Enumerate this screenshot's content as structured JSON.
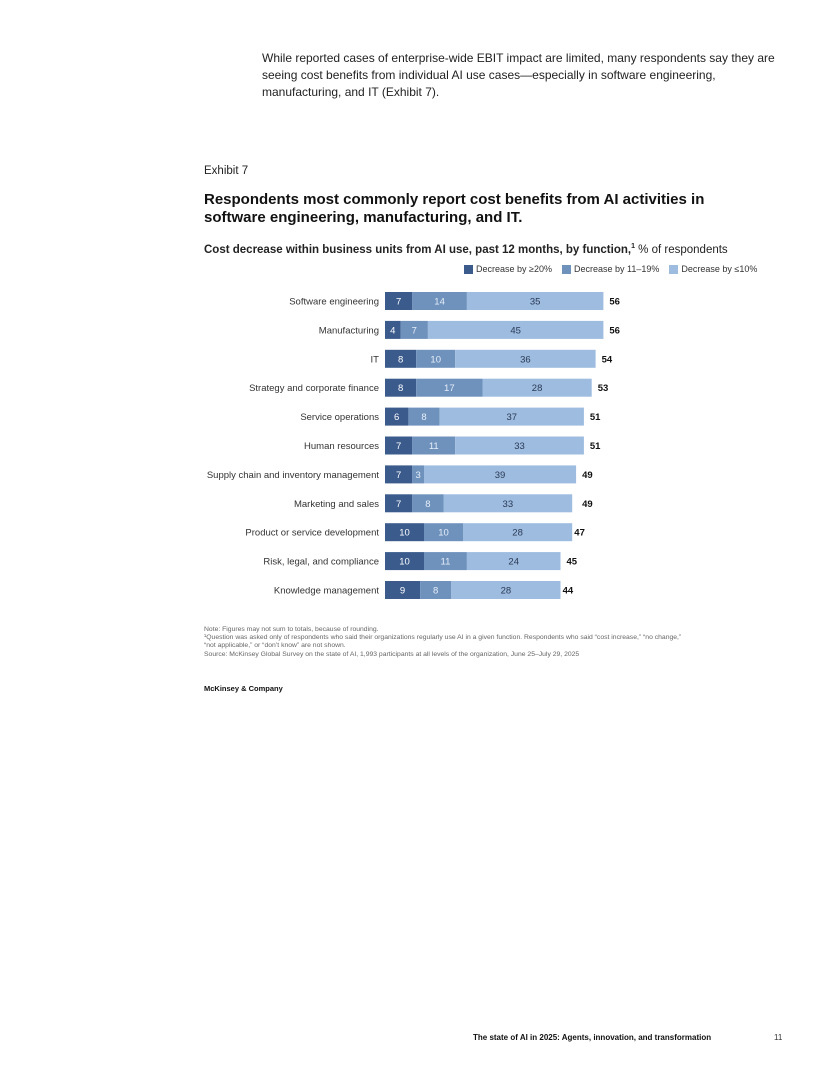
{
  "intro_text": "While reported cases of enterprise-wide EBIT impact are limited, many respondents say they are seeing cost benefits from individual AI use cases—especially in software engineering, manufacturing, and IT (Exhibit 7).",
  "exhibit_label": "Exhibit 7",
  "chart_title": "Respondents most commonly report cost benefits from AI activities in software engineering, manufacturing, and IT.",
  "chart_subtitle_bold": "Cost decrease within business units from AI use, past 12 months, by function,",
  "chart_subtitle_sup": "1",
  "chart_subtitle_rest": " % of respondents",
  "colors": {
    "dark": "#3a5b8c",
    "mid": "#6f92bd",
    "light": "#9dbce0"
  },
  "chart_data": {
    "type": "bar",
    "orientation": "horizontal",
    "stacked": true,
    "legend_position": "top-right",
    "categories": [
      "Software engineering",
      "Manufacturing",
      "IT",
      "Strategy and corporate finance",
      "Service operations",
      "Human resources",
      "Supply chain and inventory management",
      "Marketing and sales",
      "Product or service development",
      "Risk, legal, and compliance",
      "Knowledge management"
    ],
    "series": [
      {
        "name": "Decrease by ≥20%",
        "values": [
          7,
          4,
          8,
          8,
          6,
          7,
          7,
          7,
          10,
          10,
          9
        ]
      },
      {
        "name": "Decrease by 11–19%",
        "values": [
          14,
          7,
          10,
          17,
          8,
          11,
          3,
          8,
          10,
          11,
          8
        ]
      },
      {
        "name": "Decrease by ≤10%",
        "values": [
          35,
          45,
          36,
          28,
          37,
          33,
          39,
          33,
          28,
          24,
          28
        ]
      }
    ],
    "totals": [
      56,
      56,
      54,
      53,
      51,
      51,
      49,
      49,
      47,
      45,
      44
    ]
  },
  "notes": [
    "Note: Figures may not sum to totals, because of rounding.",
    "¹Question was asked only of respondents who said their organizations regularly use AI in a given function. Respondents who said “cost increase,” “no change,”\n“not applicable,” or “don’t know” are not shown.",
    "Source: McKinsey Global Survey on the state of AI, 1,993 participants at all levels of the organization, June 25–July 29, 2025"
  ],
  "brand": "McKinsey & Company",
  "footer_title": "The state of AI in 2025: Agents, innovation, and transformation",
  "page_number": "11"
}
